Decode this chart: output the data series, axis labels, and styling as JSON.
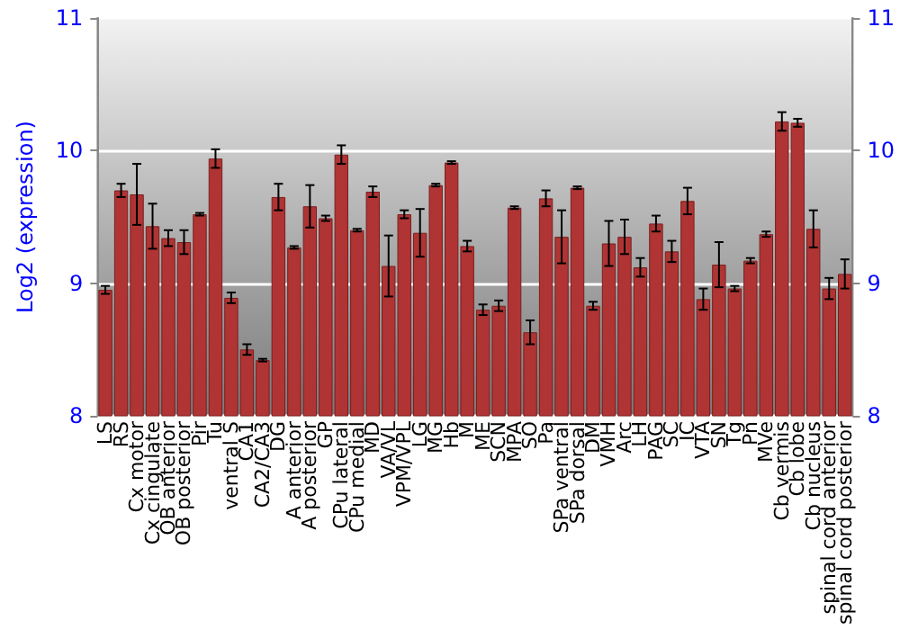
{
  "chart_data": {
    "type": "bar",
    "ylabel": "Log2 (expression)",
    "categories": [
      "LS",
      "RS",
      "Cx motor",
      "Cx cingulate",
      "OB anterior",
      "OB posterior",
      "Pir",
      "Tu",
      "ventral S",
      "CA1",
      "CA2/CA3",
      "DG",
      "A anterior",
      "A posterior",
      "GP",
      "CPu lateral",
      "CPu medial",
      "MD",
      "VA/VL",
      "VPM/VPL",
      "LG",
      "MG",
      "Hb",
      "M",
      "ME",
      "SCN",
      "MPA",
      "SO",
      "Pa",
      "SPa ventral",
      "SPa dorsal",
      "DM",
      "VMH",
      "Arc",
      "LH",
      "PAG",
      "SC",
      "IC",
      "VTA",
      "SN",
      "Tg",
      "Pn",
      "MVe",
      "Cb vermis",
      "Cb lobe",
      "Cb nucleus",
      "spinal cord anterior",
      "spinal cord posterior"
    ],
    "values": [
      8.95,
      9.7,
      9.67,
      9.43,
      9.34,
      9.31,
      9.52,
      9.94,
      8.89,
      8.5,
      8.42,
      9.65,
      9.27,
      9.58,
      9.49,
      9.97,
      9.4,
      9.69,
      9.13,
      9.52,
      9.38,
      9.74,
      9.91,
      9.28,
      8.8,
      8.83,
      9.57,
      8.63,
      9.64,
      9.35,
      9.72,
      8.83,
      9.3,
      9.35,
      9.12,
      9.45,
      9.24,
      9.62,
      8.88,
      9.14,
      8.96,
      9.17,
      9.37,
      10.22,
      10.21,
      9.41,
      8.96,
      9.07
    ],
    "errors": [
      0.03,
      0.05,
      0.23,
      0.17,
      0.06,
      0.09,
      0.01,
      0.07,
      0.04,
      0.04,
      0.01,
      0.1,
      0.01,
      0.16,
      0.02,
      0.07,
      0.01,
      0.04,
      0.23,
      0.03,
      0.18,
      0.01,
      0.01,
      0.04,
      0.04,
      0.04,
      0.01,
      0.09,
      0.06,
      0.2,
      0.01,
      0.03,
      0.17,
      0.13,
      0.07,
      0.06,
      0.08,
      0.1,
      0.08,
      0.17,
      0.02,
      0.02,
      0.02,
      0.07,
      0.03,
      0.14,
      0.08,
      0.11
    ],
    "color": "#b03434",
    "ylim": [
      8,
      11
    ],
    "yticks": [
      8,
      9,
      10,
      11
    ],
    "y2lim": [
      8,
      11
    ],
    "y2ticks": [
      8,
      9,
      10,
      11
    ],
    "grid": "y"
  }
}
